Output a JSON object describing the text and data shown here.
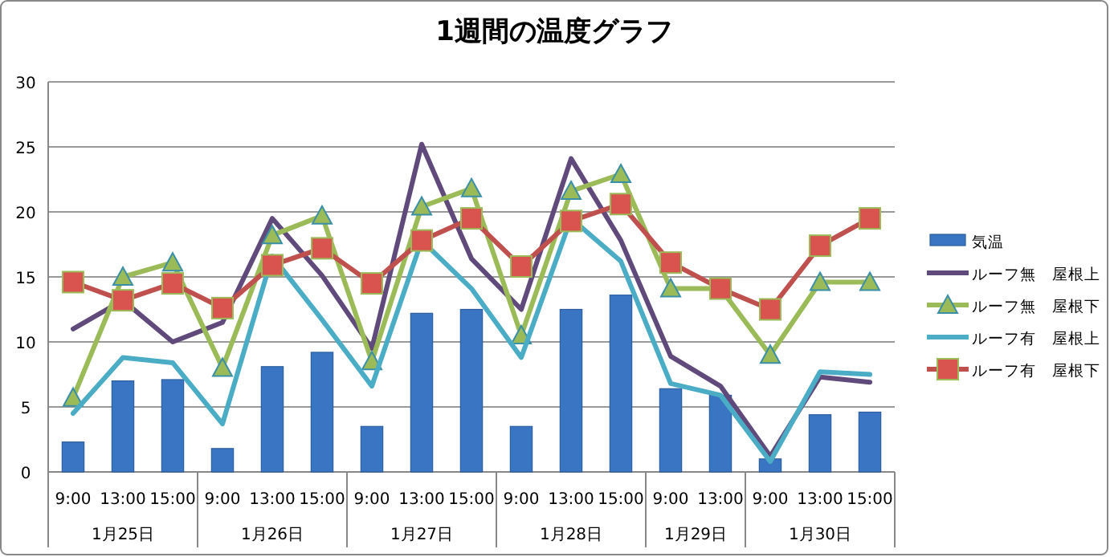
{
  "chart_data": {
    "type": "bar",
    "title": "1週間の温度グラフ",
    "categories": [
      "9:00",
      "13:00",
      "15:00",
      "9:00",
      "13:00",
      "15:00",
      "9:00",
      "13:00",
      "15:00",
      "9:00",
      "13:00",
      "15:00",
      "9:00",
      "13:00",
      "9:00",
      "13:00",
      "15:00"
    ],
    "annotations": [
      "1月25日",
      "1月26日",
      "1月27日",
      "1月28日",
      "1月29日",
      "1月30日"
    ],
    "series": [
      {
        "name": "気温",
        "color": "#3a75c4",
        "values": [
          2.3,
          7.0,
          7.1,
          1.8,
          8.1,
          9.2,
          3.5,
          12.2,
          12.5,
          3.5,
          12.5,
          13.6,
          6.4,
          5.9,
          1.0,
          4.4,
          4.6
        ]
      },
      {
        "name": "ルーフ無　屋根上",
        "type": "line",
        "color": "#604a7b",
        "marker": "none",
        "values": [
          11.0,
          13.2,
          10.0,
          11.5,
          19.5,
          15.1,
          9.5,
          25.2,
          16.4,
          12.5,
          24.1,
          17.8,
          8.9,
          6.6,
          1.2,
          7.3,
          6.9
        ]
      },
      {
        "name": "ルーフ無　屋根下",
        "type": "line",
        "color": "#9bbb59",
        "marker": "triangle",
        "values": [
          5.7,
          15.0,
          16.1,
          8.0,
          18.2,
          19.7,
          8.5,
          20.4,
          21.8,
          10.5,
          21.6,
          22.9,
          14.1,
          14.1,
          9.0,
          14.6,
          14.6
        ]
      },
      {
        "name": "ルーフ有　屋根上",
        "type": "line",
        "color": "#4bacc6",
        "marker": "none",
        "values": [
          4.5,
          8.8,
          8.4,
          3.7,
          16.6,
          11.7,
          6.6,
          17.8,
          14.1,
          8.8,
          19.5,
          16.2,
          6.8,
          5.9,
          0.8,
          7.7,
          7.5
        ]
      },
      {
        "name": "ルーフ有　屋根下",
        "type": "line",
        "color": "#c0504d",
        "marker": "square",
        "values": [
          14.6,
          13.2,
          14.5,
          12.6,
          15.9,
          17.2,
          14.5,
          17.8,
          19.5,
          15.8,
          19.3,
          20.6,
          16.1,
          14.1,
          12.5,
          17.4,
          19.5
        ]
      }
    ],
    "ylim": [
      0,
      30
    ],
    "yticks": [
      0,
      5,
      10,
      15,
      20,
      25,
      30
    ],
    "grid": "y",
    "legend": "right"
  }
}
